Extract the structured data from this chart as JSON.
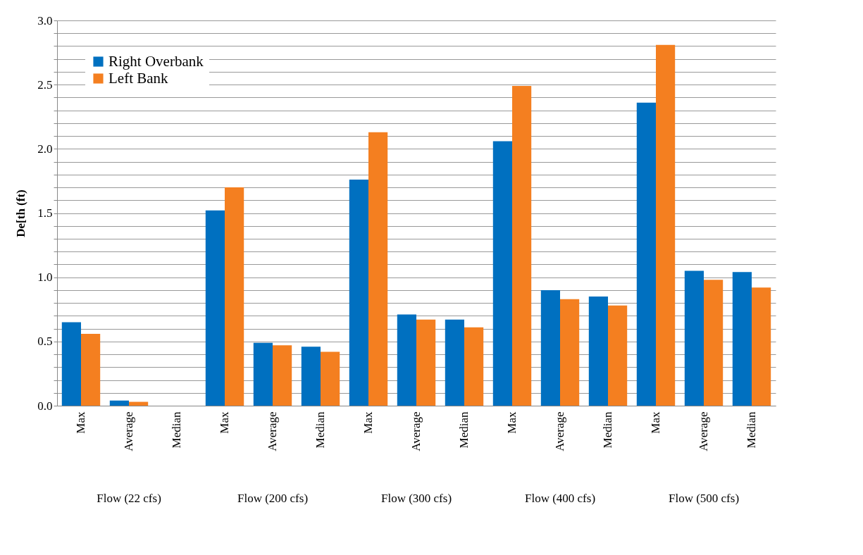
{
  "chart_data": {
    "type": "bar",
    "ylabel": "De[th (ft)",
    "categories": [
      "Max",
      "Average",
      "Median",
      "Max",
      "Average",
      "Median",
      "Max",
      "Average",
      "Median",
      "Max",
      "Average",
      "Median",
      "Max",
      "Average",
      "Median"
    ],
    "annotations": [
      "Flow (22 cfs)",
      "Flow (200 cfs)",
      "Flow (300 cfs)",
      "Flow (400 cfs)",
      "Flow (500 cfs)"
    ],
    "series": [
      {
        "name": "Right Overbank",
        "color": "#0070c0",
        "values": [
          0.65,
          0.04,
          0,
          1.52,
          0.49,
          0.46,
          1.76,
          0.71,
          0.67,
          2.06,
          0.9,
          0.85,
          2.36,
          1.05,
          1.04
        ]
      },
      {
        "name": "Left Bank",
        "color": "#f47f20",
        "values": [
          0.56,
          0.03,
          0,
          1.7,
          0.47,
          0.42,
          2.13,
          0.67,
          0.61,
          2.49,
          0.83,
          0.78,
          2.81,
          0.98,
          0.92
        ]
      }
    ],
    "ylim": [
      0,
      3
    ],
    "yticks": [
      {
        "value": 0,
        "label": "0.0"
      },
      {
        "value": 0.1,
        "label": null
      },
      {
        "value": 0.2,
        "label": null
      },
      {
        "value": 0.3,
        "label": null
      },
      {
        "value": 0.4,
        "label": null
      },
      {
        "value": 0.5,
        "label": "0.5"
      },
      {
        "value": 0.6,
        "label": null
      },
      {
        "value": 0.7,
        "label": null
      },
      {
        "value": 0.8,
        "label": null
      },
      {
        "value": 0.9,
        "label": null
      },
      {
        "value": 1,
        "label": "1.0"
      },
      {
        "value": 1.1,
        "label": null
      },
      {
        "value": 1.2,
        "label": null
      },
      {
        "value": 1.3,
        "label": null
      },
      {
        "value": 1.4,
        "label": null
      },
      {
        "value": 1.5,
        "label": "1.5"
      },
      {
        "value": 1.6,
        "label": null
      },
      {
        "value": 1.7,
        "label": null
      },
      {
        "value": 1.8,
        "label": null
      },
      {
        "value": 1.9,
        "label": null
      },
      {
        "value": 2,
        "label": "2.0"
      },
      {
        "value": 2.1,
        "label": null
      },
      {
        "value": 2.2,
        "label": null
      },
      {
        "value": 2.3,
        "label": null
      },
      {
        "value": 2.4,
        "label": null
      },
      {
        "value": 2.5,
        "label": "2.5"
      },
      {
        "value": 2.6,
        "label": null
      },
      {
        "value": 2.7,
        "label": null
      },
      {
        "value": 2.8,
        "label": null
      },
      {
        "value": 2.9,
        "label": null
      },
      {
        "value": 3,
        "label": "3.0"
      }
    ],
    "grid": true,
    "legend": "top left"
  }
}
